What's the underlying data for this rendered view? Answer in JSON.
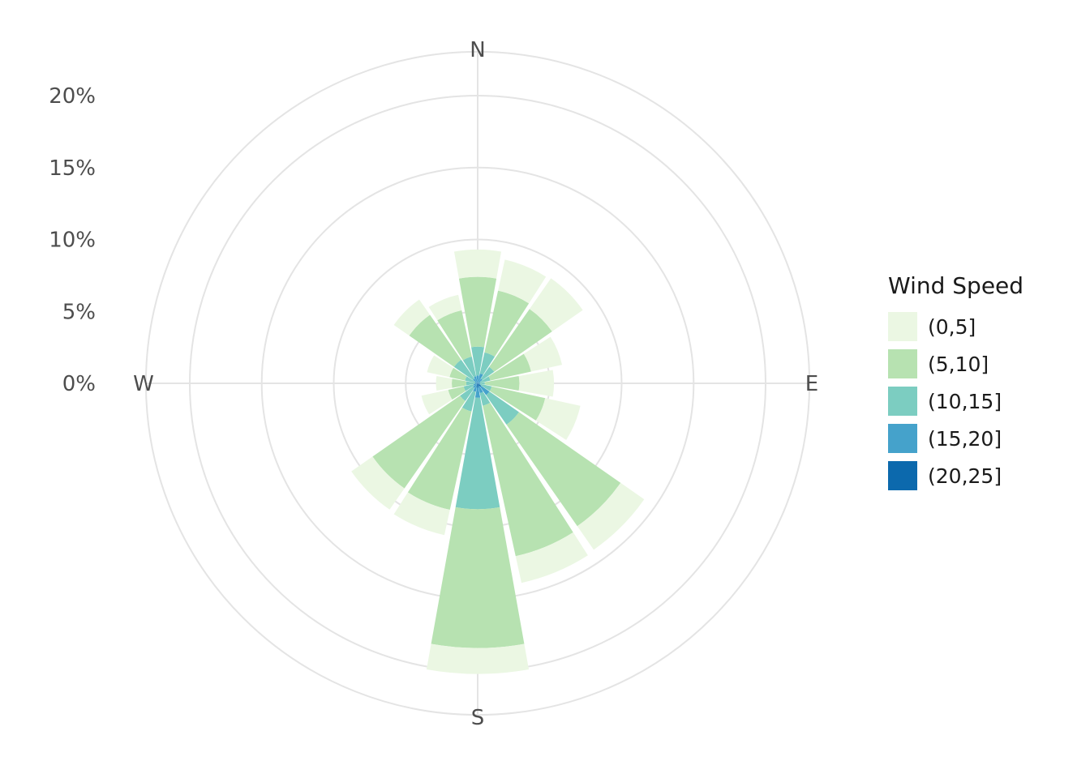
{
  "legend": {
    "title": "Wind Speed"
  },
  "chart_data": {
    "type": "bar",
    "subtype": "wind-rose (polar stacked bar, ggplot style)",
    "units": "percent frequency of wind direction",
    "directions": [
      "N",
      "NNE",
      "NE",
      "ENE",
      "E",
      "ESE",
      "SE",
      "SSE",
      "S",
      "SSW",
      "SW",
      "WSW",
      "W",
      "WNW",
      "NW",
      "NNW"
    ],
    "direction_step_deg": 22.5,
    "speed_bins": [
      {
        "label": "(0,5]",
        "color": "#EBF7E3"
      },
      {
        "label": "(5,10]",
        "color": "#B7E2B1"
      },
      {
        "label": "(10,15]",
        "color": "#7CCDC1"
      },
      {
        "label": "(15,20]",
        "color": "#45A2CB"
      },
      {
        "label": "(20,25]",
        "color": "#0C69AD"
      }
    ],
    "series": [
      {
        "name": "(0,5]",
        "values": [
          1.9,
          2.2,
          2.6,
          2.2,
          2.4,
          2.5,
          2.0,
          1.9,
          1.8,
          1.8,
          1.8,
          1.9,
          1.1,
          1.6,
          1.3,
          1.1
        ]
      },
      {
        "name": "(5,10]",
        "values": [
          4.85,
          4.4,
          4.9,
          2.9,
          2.4,
          3.8,
          8.6,
          10.7,
          9.65,
          7.0,
          7.4,
          1.1,
          1.0,
          1.1,
          3.8,
          3.3
        ]
      },
      {
        "name": "(10,15]",
        "values": [
          2.0,
          1.5,
          1.0,
          0.7,
          0.35,
          0.8,
          2.5,
          0.9,
          7.75,
          1.4,
          1.1,
          0.7,
          0.6,
          0.7,
          1.6,
          1.4
        ]
      },
      {
        "name": "(15,20]",
        "values": [
          0.45,
          0.65,
          0.35,
          0.2,
          0.15,
          0.2,
          0.7,
          0.5,
          0.7,
          0.45,
          0.3,
          0.3,
          0.2,
          0.2,
          0.35,
          0.45
        ]
      },
      {
        "name": "(20,25]",
        "values": [
          0.1,
          0.05,
          0.05,
          0,
          0,
          0,
          0.3,
          0.2,
          0.3,
          0.15,
          0.1,
          0,
          0,
          0,
          0.05,
          0.05
        ]
      }
    ],
    "stack_order_from_center": [
      "(20,25]",
      "(15,20]",
      "(10,15]",
      "(5,10]",
      "(0,5]"
    ],
    "radial_ticks": [
      {
        "label": "0%",
        "value": 0
      },
      {
        "label": "5%",
        "value": 5
      },
      {
        "label": "10%",
        "value": 10
      },
      {
        "label": "15%",
        "value": 15
      },
      {
        "label": "20%",
        "value": 20
      }
    ],
    "angular_axis_labels": [
      "N",
      "E",
      "S",
      "W"
    ],
    "grid": "on",
    "grid_rings_pct": [
      5,
      10,
      15,
      20
    ],
    "outer_ring_pct": 23.05,
    "legend_title": "Wind Speed",
    "legend_position": "right",
    "colors": {
      "background": "#FFFFFF",
      "grid": "#E4E4E4",
      "axis_label": "#4D4D4D",
      "legend_text": "#1A1A1A"
    }
  }
}
